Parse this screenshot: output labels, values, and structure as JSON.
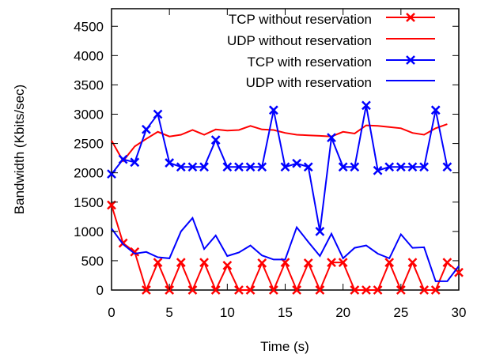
{
  "chart_data": {
    "type": "line",
    "title": "",
    "xlabel": "Time (s)",
    "ylabel": "Bandwidth (Kbits/sec)",
    "xlim": [
      0,
      30
    ],
    "ylim": [
      0,
      4800
    ],
    "xticks": [
      0,
      5,
      10,
      15,
      20,
      25,
      30
    ],
    "yticks": [
      0,
      500,
      1000,
      1500,
      2000,
      2500,
      3000,
      3500,
      4000,
      4500
    ],
    "xtick_labels": [
      "0",
      "5",
      "10",
      "15",
      "20",
      "25",
      "30"
    ],
    "ytick_labels": [
      "0",
      "500",
      "1000",
      "1500",
      "2000",
      "2500",
      "3000",
      "3500",
      "4000",
      "4500"
    ],
    "grid": false,
    "legend_position": "top-right",
    "series": [
      {
        "name": "TCP without reservation",
        "color": "#ff0000",
        "marker": "x",
        "x": [
          0,
          1,
          2,
          3,
          4,
          5,
          6,
          7,
          8,
          9,
          10,
          11,
          12,
          13,
          14,
          15,
          16,
          17,
          18,
          19,
          20,
          21,
          22,
          23,
          24,
          25,
          26,
          27,
          28,
          29,
          30
        ],
        "y": [
          1450,
          800,
          650,
          0,
          470,
          0,
          470,
          0,
          470,
          0,
          420,
          0,
          0,
          460,
          0,
          470,
          0,
          460,
          0,
          470,
          470,
          0,
          0,
          0,
          470,
          0,
          470,
          0,
          0,
          470,
          300
        ]
      },
      {
        "name": "UDP without reservation",
        "color": "#ff0000",
        "marker": "none",
        "x": [
          0,
          1,
          2,
          3,
          4,
          5,
          6,
          7,
          8,
          9,
          10,
          11,
          12,
          13,
          14,
          15,
          16,
          17,
          18,
          19,
          20,
          21,
          22,
          23,
          24,
          25,
          26,
          27,
          28,
          29
        ],
        "y": [
          2550,
          2200,
          2450,
          2580,
          2700,
          2620,
          2650,
          2730,
          2650,
          2740,
          2720,
          2730,
          2800,
          2740,
          2730,
          2680,
          2650,
          2640,
          2630,
          2620,
          2700,
          2670,
          2810,
          2800,
          2780,
          2760,
          2680,
          2650,
          2760,
          2830
        ]
      },
      {
        "name": "TCP with reservation",
        "color": "#0000ff",
        "marker": "x",
        "x": [
          0,
          1,
          2,
          3,
          4,
          5,
          6,
          7,
          8,
          9,
          10,
          11,
          12,
          13,
          14,
          15,
          16,
          17,
          18,
          19,
          20,
          21,
          22,
          23,
          24,
          25,
          26,
          27,
          28,
          29
        ],
        "y": [
          1980,
          2230,
          2180,
          2740,
          3000,
          2170,
          2100,
          2100,
          2100,
          2560,
          2100,
          2100,
          2100,
          2100,
          3070,
          2100,
          2160,
          2100,
          1000,
          2600,
          2100,
          2100,
          3150,
          2040,
          2100,
          2100,
          2100,
          2100,
          3070,
          2100
        ]
      },
      {
        "name": "UDP with reservation",
        "color": "#0000ff",
        "marker": "none",
        "x": [
          0,
          1,
          2,
          3,
          4,
          5,
          6,
          7,
          8,
          9,
          10,
          11,
          12,
          13,
          14,
          15,
          16,
          17,
          18,
          19,
          20,
          21,
          22,
          23,
          24,
          25,
          26,
          27,
          28,
          29,
          30
        ],
        "y": [
          1050,
          780,
          620,
          650,
          560,
          540,
          1000,
          1230,
          700,
          930,
          580,
          640,
          760,
          590,
          520,
          520,
          1070,
          820,
          580,
          960,
          540,
          720,
          760,
          620,
          540,
          950,
          720,
          730,
          150,
          150,
          410
        ]
      }
    ]
  }
}
